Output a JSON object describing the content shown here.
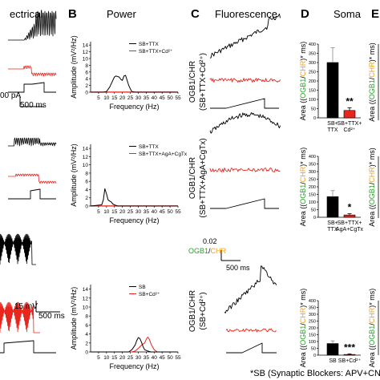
{
  "headers": {
    "a_title": "ectrical",
    "b_letter": "B",
    "b_title": "Power",
    "c_letter": "C",
    "c_title": "Fluorescence",
    "d_letter": "D",
    "d_title": "Soma",
    "e_letter": "E"
  },
  "scalebars": {
    "electrical_top": "00 pA",
    "electrical_top_time": "500 ms",
    "electrical_bottom_v": "15 mV",
    "electrical_bottom_time": "500 ms",
    "fluor_value": "0.02",
    "fluor_ogb": "OGB1",
    "fluor_slash": "/",
    "fluor_chr": "CHR",
    "fluor_time": "500 ms"
  },
  "colors": {
    "control": "#000000",
    "treatment": "#e8261e",
    "ogb": "#2aa02b",
    "chr": "#f0a020"
  },
  "rows": [
    {
      "power": {
        "ylabel": "Amplitude (mV²/Hz)",
        "xlabel": "Frequency (Hz)",
        "legend": [
          "SB+TTX",
          "SB+TTX+Cd²⁺"
        ],
        "yticks": [
          "0",
          "2",
          "4",
          "6",
          "8",
          "10",
          "12",
          "14"
        ],
        "xticks": [
          "5",
          "10",
          "15",
          "20",
          "25",
          "30",
          "35",
          "40",
          "45",
          "50",
          "55"
        ]
      },
      "fluor_label": [
        "OGB1/CHR",
        "(SB+TTX+Cd²⁺)"
      ],
      "soma": {
        "ylabel_parts": [
          "Area ((",
          "OGB1",
          "/",
          "CHR",
          ")* ms)"
        ],
        "yticks": [
          "0",
          "50",
          "100",
          "150",
          "200",
          "250",
          "300",
          "350",
          "400"
        ],
        "bars": [
          "SB+\nTTX",
          "SB+TTX+\nCd²⁺"
        ],
        "sig": "**"
      }
    },
    {
      "power": {
        "ylabel": "Amplitude (mV²/Hz)",
        "xlabel": "Frequency (Hz)",
        "legend": [
          "SB+TTX",
          "SB+TTX+AgA+CgTx"
        ],
        "yticks": [
          "0",
          "2",
          "4",
          "6",
          "8",
          "10",
          "12",
          "14"
        ],
        "xticks": [
          "5",
          "10",
          "15",
          "20",
          "25",
          "30",
          "35",
          "40",
          "45",
          "50",
          "55"
        ]
      },
      "fluor_label": [
        "OGB1/CHR",
        "(SB+TTX+AgA+CgTx)"
      ],
      "soma": {
        "ylabel_parts": [
          "Area ((",
          "OGB1",
          "/",
          "CHR",
          ")* ms)"
        ],
        "yticks": [
          "0",
          "50",
          "100",
          "150",
          "200",
          "250",
          "300",
          "350",
          "400"
        ],
        "bars": [
          "SB+\nTTX",
          "SB+TTX+\nAgA+CgTx"
        ],
        "sig": "*"
      }
    },
    {
      "power": {
        "ylabel": "Amplitude (mV²/Hz)",
        "xlabel": "Frequency (Hz)",
        "legend": [
          "SB",
          "SB+Cd²⁺"
        ],
        "yticks": [
          "0",
          "2",
          "4",
          "6",
          "8",
          "10",
          "12",
          "14"
        ],
        "xticks": [
          "5",
          "10",
          "15",
          "20",
          "25",
          "30",
          "35",
          "40",
          "45",
          "50",
          "55"
        ]
      },
      "fluor_label": [
        "OGB1/CHR",
        "(SB+Cd²⁺)"
      ],
      "soma": {
        "ylabel_parts": [
          "Area ((",
          "OGB1",
          "/",
          "CHR",
          ")* ms)"
        ],
        "yticks": [
          "0",
          "50",
          "100",
          "150",
          "200",
          "250",
          "300",
          "350",
          "400"
        ],
        "bars": [
          "SB",
          "SB+Cd²⁺"
        ],
        "sig": "***"
      }
    }
  ],
  "chart_data": [
    {
      "type": "line",
      "panel": "B-top",
      "ylabel": "Amplitude (mV²/Hz)",
      "xlabel": "Frequency (Hz)",
      "xlim": [
        0,
        55
      ],
      "ylim": [
        0,
        15
      ],
      "series": [
        {
          "name": "SB+TTX",
          "x": [
            0,
            8,
            10,
            12,
            14,
            15,
            16,
            18,
            19,
            20,
            21,
            22,
            23,
            24,
            25,
            26,
            28,
            30,
            55
          ],
          "y": [
            0,
            0,
            0.2,
            1.5,
            3.5,
            4.5,
            4.8,
            4.5,
            3.8,
            3.5,
            4.8,
            5.0,
            3.5,
            2.0,
            1.0,
            0.2,
            0,
            0,
            0
          ]
        },
        {
          "name": "SB+TTX+Cd²⁺",
          "x": [
            0,
            55
          ],
          "y": [
            0.05,
            0.05
          ]
        }
      ]
    },
    {
      "type": "line",
      "panel": "B-middle",
      "ylabel": "Amplitude (mV²/Hz)",
      "xlabel": "Frequency (Hz)",
      "xlim": [
        0,
        55
      ],
      "ylim": [
        0,
        15
      ],
      "series": [
        {
          "name": "SB+TTX",
          "x": [
            0,
            7,
            8,
            9,
            10,
            11,
            12,
            13,
            14,
            15,
            17,
            55
          ],
          "y": [
            0,
            0.3,
            1.5,
            4.2,
            3.0,
            1.5,
            1.2,
            1.0,
            0.5,
            0.3,
            0,
            0
          ]
        },
        {
          "name": "SB+TTX+AgA+CgTx",
          "x": [
            0,
            55
          ],
          "y": [
            0.05,
            0.05
          ]
        }
      ]
    },
    {
      "type": "line",
      "panel": "B-bottom",
      "ylabel": "Amplitude (mV²/Hz)",
      "xlabel": "Frequency (Hz)",
      "xlim": [
        0,
        55
      ],
      "ylim": [
        0,
        15
      ],
      "series": [
        {
          "name": "SB",
          "x": [
            0,
            24,
            26,
            28,
            29,
            30,
            31,
            32,
            33,
            34,
            36,
            38,
            55
          ],
          "y": [
            0,
            0,
            0.5,
            1.5,
            2.5,
            3.2,
            3.0,
            2.2,
            1.2,
            0.5,
            0.2,
            0,
            0
          ]
        },
        {
          "name": "SB+Cd²⁺",
          "x": [
            0,
            26,
            28,
            30,
            32,
            34,
            35,
            36,
            37,
            38,
            40,
            42,
            55
          ],
          "y": [
            0,
            0,
            0.2,
            0.8,
            1.5,
            2.0,
            2.8,
            3.3,
            2.8,
            1.8,
            0.5,
            0,
            0
          ]
        }
      ]
    },
    {
      "type": "bar",
      "panel": "D-top",
      "ylim": [
        0,
        400
      ],
      "categories": [
        "SB+TTX",
        "SB+TTX+Cd²⁺"
      ],
      "values": [
        300,
        40
      ],
      "errors": [
        80,
        15
      ]
    },
    {
      "type": "bar",
      "panel": "D-middle",
      "ylim": [
        0,
        400
      ],
      "categories": [
        "SB+TTX",
        "SB+TTX+AgA+CgTx"
      ],
      "values": [
        135,
        15
      ],
      "errors": [
        40,
        8
      ]
    },
    {
      "type": "bar",
      "panel": "D-bottom",
      "ylim": [
        0,
        400
      ],
      "categories": [
        "SB",
        "SB+Cd²⁺"
      ],
      "values": [
        85,
        5
      ],
      "errors": [
        20,
        4
      ]
    }
  ],
  "footnote": "*SB (Synaptic Blockers: APV+CNQ"
}
